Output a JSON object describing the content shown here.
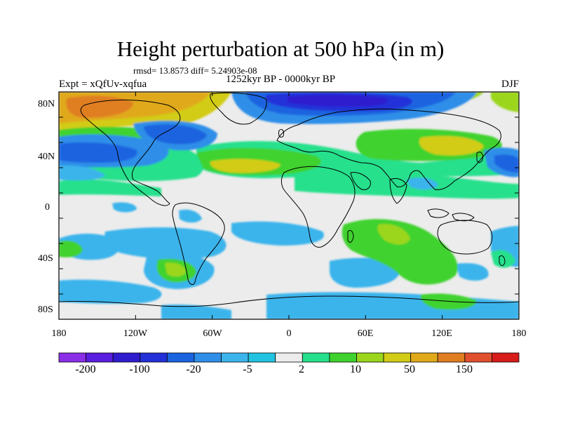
{
  "title": "Height perturbation at 500 hPa (in m)",
  "stats": "rmsd= 13.8573 diff= 5.24903e-08",
  "period": "1252kyr BP - 0000kyr BP",
  "experiment": "Expt = xQfUv-xqfua",
  "season": "DJF",
  "lat_labels": [
    "80N",
    "40N",
    "0",
    "40S",
    "80S"
  ],
  "lon_labels": [
    "180",
    "120W",
    "60W",
    "0",
    "60E",
    "120E",
    "180"
  ],
  "colorbar": {
    "colors": [
      "#8b2ee8",
      "#5a1ee0",
      "#2f1ccf",
      "#2430d8",
      "#1a64e0",
      "#2f8ee8",
      "#3bb4ec",
      "#22c3e0",
      "#ececec",
      "#27e08c",
      "#3fd22f",
      "#9bd61c",
      "#d2cc16",
      "#e0a91a",
      "#e07e22",
      "#e0502e",
      "#d81c1a"
    ],
    "labels": [
      "-200",
      "-100",
      "-20",
      "-5",
      "2",
      "10",
      "50",
      "150"
    ]
  },
  "map_colors": {
    "neutral": "#ececec",
    "green_light": "#27e08c",
    "green": "#3fd22f",
    "yellow_green": "#9bd61c",
    "yellow": "#d2cc16",
    "orange": "#e0a91a",
    "orange_dark": "#e07e22",
    "cyan": "#3bb4ec",
    "cyan_light": "#22c3e0",
    "blue_mid": "#2f8ee8",
    "blue": "#1a64e0",
    "blue_dark": "#2430d8",
    "indigo": "#2f1ccf",
    "coast": "#000000"
  }
}
